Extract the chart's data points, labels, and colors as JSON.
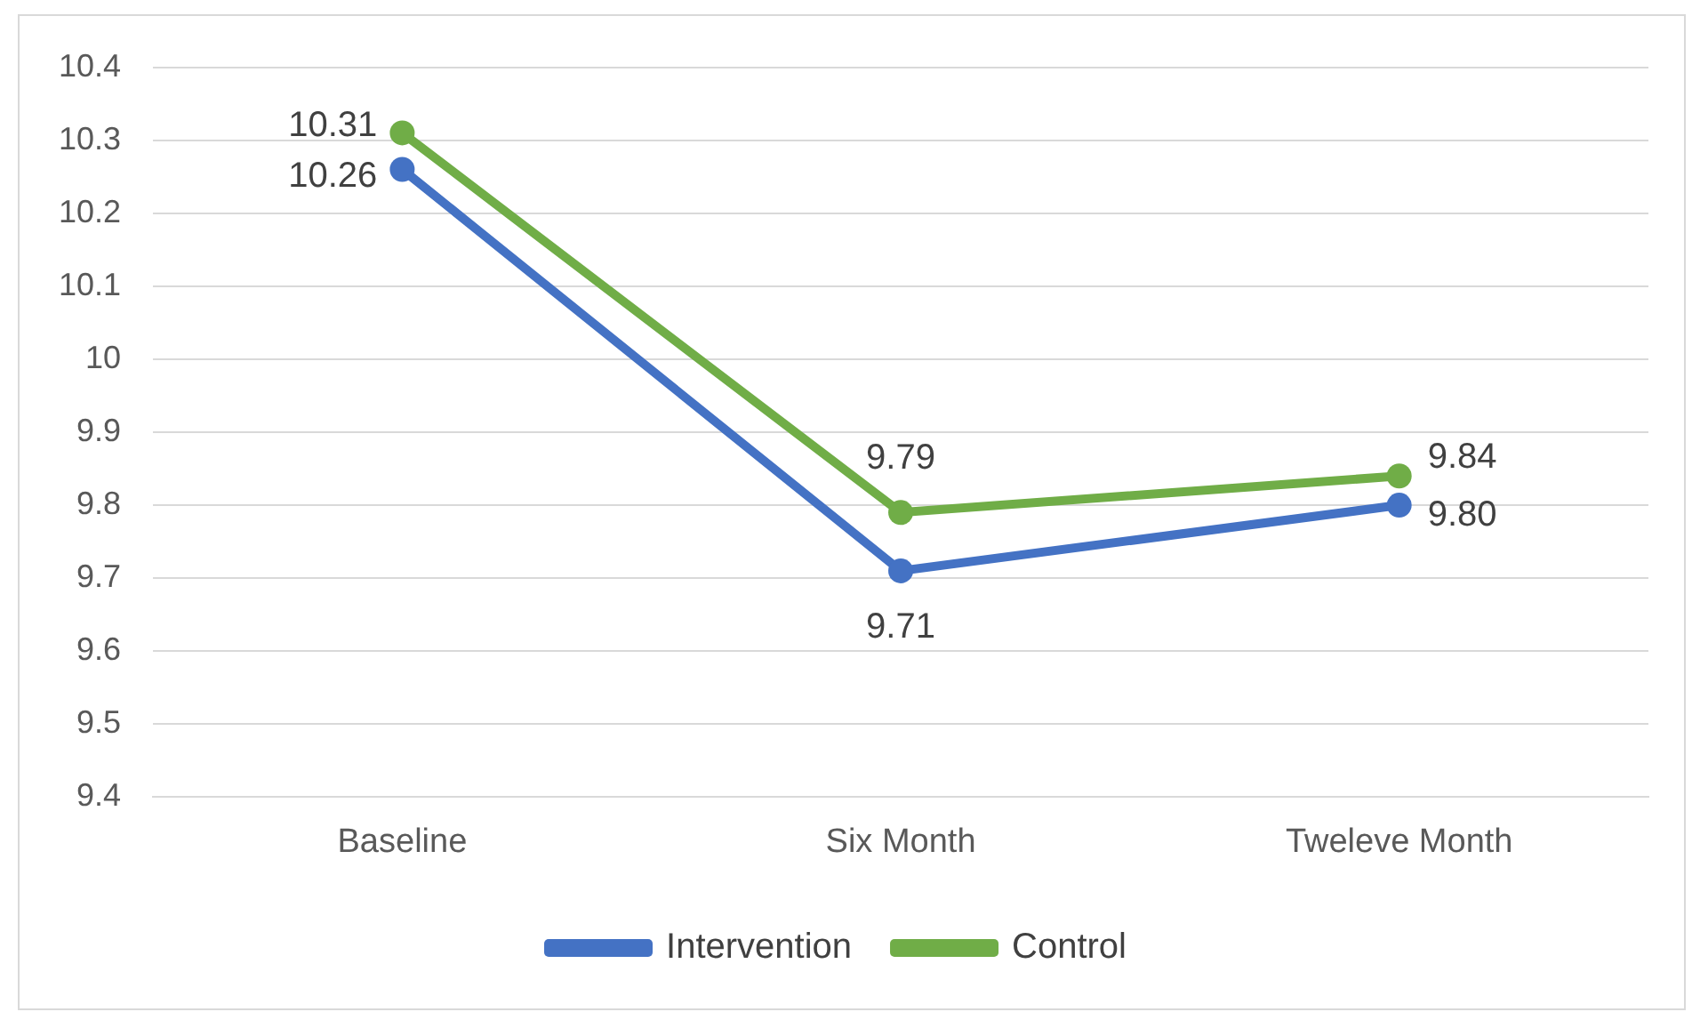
{
  "chart_data": {
    "type": "line",
    "categories": [
      "Baseline",
      "Six Month",
      "Tweleve Month"
    ],
    "series": [
      {
        "name": "Intervention",
        "color": "#4472c4",
        "values": [
          10.26,
          9.71,
          9.8
        ],
        "value_labels": [
          "10.26",
          "9.71",
          "9.80"
        ]
      },
      {
        "name": "Control",
        "color": "#70ad47",
        "values": [
          10.31,
          9.79,
          9.84
        ],
        "value_labels": [
          "10.31",
          "9.79",
          "9.84"
        ]
      }
    ],
    "ylim": [
      9.4,
      10.4
    ],
    "yticks": [
      9.4,
      9.5,
      9.6,
      9.7,
      9.8,
      9.9,
      10,
      10.1,
      10.2,
      10.3,
      10.4
    ],
    "grid": "y",
    "legend": "bottom",
    "marker": "circle",
    "line_style": "solid"
  }
}
